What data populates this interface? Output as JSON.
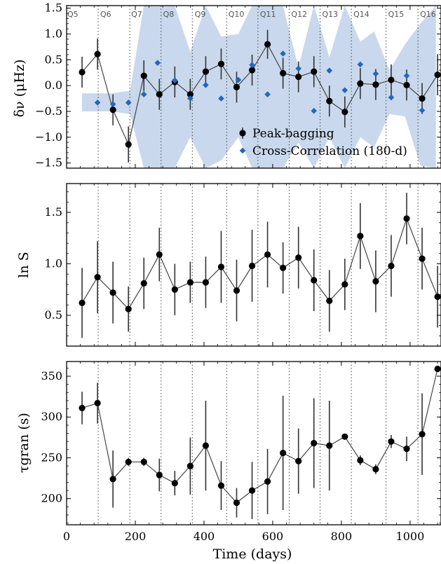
{
  "chart_data": [
    {
      "type": "scatter",
      "ylabel": "δν (μHz)",
      "xlim": [
        0,
        1090
      ],
      "ylim": [
        -1.6,
        1.55
      ],
      "yticks": [
        -1.5,
        -1.0,
        -0.5,
        0.0,
        0.5,
        1.0,
        1.5
      ],
      "ytick_labels": [
        "−1.5",
        "−1.0",
        "−0.5",
        "0.0",
        "0.5",
        "1.0",
        "1.5"
      ],
      "quarters": {
        "labels": [
          "Q5",
          "Q6",
          "Q7",
          "Q8",
          "Q9",
          "Q10",
          "Q11",
          "Q12",
          "Q13",
          "Q14",
          "Q15",
          "Q16"
        ],
        "boundaries": [
          92,
          184,
          275,
          366,
          466,
          557,
          648,
          738,
          829,
          930,
          1023
        ],
        "label_x": [
          0,
          96,
          186,
          279,
          371,
          469,
          561,
          652,
          742,
          833,
          934,
          1027
        ]
      },
      "legend": {
        "position": "lower-right",
        "entries": [
          "Peak-bagging",
          "Cross-Correlation (180-d)"
        ]
      },
      "band": {
        "x": [
          45,
          130,
          185,
          225,
          270,
          315,
          360,
          405,
          450,
          500,
          540,
          585,
          630,
          675,
          720,
          765,
          810,
          855,
          895,
          940,
          985,
          1030,
          1075
        ],
        "upper": [
          -0.15,
          -0.15,
          -0.1,
          1.55,
          1.55,
          1.55,
          0.65,
          1.55,
          0.95,
          1.0,
          1.55,
          1.55,
          1.55,
          0.35,
          1.55,
          0.55,
          1.55,
          0.85,
          1.05,
          0.3,
          0.8,
          1.2,
          1.55
        ],
        "lower": [
          -0.5,
          -0.5,
          -0.55,
          -1.6,
          -1.6,
          -1.6,
          -1.0,
          -1.6,
          -1.45,
          -1.0,
          -1.6,
          -1.6,
          -1.6,
          -1.1,
          -1.6,
          -1.0,
          -1.6,
          -1.0,
          -1.2,
          -0.55,
          -0.6,
          -1.55,
          -1.6
        ]
      },
      "series": [
        {
          "name": "Peak-bagging",
          "marker": "circle",
          "color": "#000000",
          "connected": true,
          "x": [
            45,
            90,
            135,
            180,
            225,
            270,
            315,
            360,
            405,
            450,
            495,
            540,
            585,
            630,
            675,
            720,
            765,
            810,
            855,
            900,
            945,
            990,
            1035,
            1080
          ],
          "y": [
            0.26,
            0.61,
            -0.47,
            -1.14,
            0.19,
            -0.17,
            0.07,
            -0.17,
            0.27,
            0.42,
            -0.03,
            0.3,
            0.8,
            0.24,
            0.17,
            0.27,
            -0.3,
            -0.51,
            0.04,
            0.02,
            0.11,
            0.01,
            -0.25,
            0.21
          ],
          "err": [
            0.3,
            0.3,
            0.3,
            0.35,
            0.3,
            0.3,
            0.3,
            0.3,
            0.3,
            0.3,
            0.3,
            0.3,
            0.28,
            0.3,
            0.3,
            0.3,
            0.3,
            0.3,
            0.3,
            0.3,
            0.3,
            0.3,
            0.3,
            0.4
          ]
        },
        {
          "name": "Cross-Correlation (180-d)",
          "marker": "diamond",
          "color": "#1f68c1",
          "connected": false,
          "x": [
            90,
            135,
            180,
            225,
            265,
            315,
            360,
            405,
            450,
            500,
            540,
            585,
            630,
            675,
            720,
            765,
            810,
            855,
            900,
            945,
            990,
            1035
          ],
          "y": [
            -0.33,
            -0.36,
            -0.33,
            -0.17,
            0.44,
            0.1,
            -0.25,
            0.01,
            -0.25,
            0.11,
            0.4,
            -0.17,
            0.62,
            0.33,
            -0.49,
            0.29,
            -0.09,
            0.41,
            0.23,
            -0.23,
            0.19,
            -0.48
          ]
        }
      ]
    },
    {
      "type": "scatter",
      "ylabel": "ln S",
      "xlim": [
        0,
        1090
      ],
      "ylim": [
        0.2,
        1.78
      ],
      "yticks": [
        0.5,
        1.0,
        1.5
      ],
      "ytick_labels": [
        "0.5",
        "1.0",
        "1.5"
      ],
      "series": [
        {
          "name": "",
          "marker": "circle",
          "color": "#000000",
          "connected": true,
          "x": [
            45,
            90,
            135,
            180,
            225,
            270,
            315,
            360,
            405,
            450,
            495,
            540,
            585,
            630,
            675,
            720,
            765,
            810,
            855,
            900,
            945,
            990,
            1035,
            1080
          ],
          "y": [
            0.62,
            0.87,
            0.72,
            0.56,
            0.81,
            1.09,
            0.75,
            0.82,
            0.82,
            0.97,
            0.74,
            0.98,
            1.09,
            0.96,
            1.06,
            0.84,
            0.64,
            0.8,
            1.27,
            0.83,
            0.98,
            1.44,
            1.05,
            0.68
          ],
          "err": [
            0.34,
            0.35,
            0.3,
            0.22,
            0.25,
            0.26,
            0.25,
            0.2,
            0.25,
            0.35,
            0.3,
            0.35,
            0.32,
            0.25,
            0.3,
            0.3,
            0.3,
            0.25,
            0.32,
            0.3,
            0.3,
            0.25,
            0.3,
            0.3
          ]
        }
      ]
    },
    {
      "type": "scatter",
      "ylabel": "τgran (s)",
      "xlabel": "Time (days)",
      "xlim": [
        0,
        1090
      ],
      "ylim": [
        168,
        368
      ],
      "yticks": [
        200,
        250,
        300,
        350
      ],
      "ytick_labels": [
        "200",
        "250",
        "300",
        "350"
      ],
      "xticks": [
        0,
        200,
        400,
        600,
        800,
        1000
      ],
      "xtick_labels": [
        "0",
        "200",
        "400",
        "600",
        "800",
        "1000"
      ],
      "series": [
        {
          "name": "",
          "marker": "circle",
          "color": "#000000",
          "connected": true,
          "x": [
            45,
            90,
            135,
            180,
            225,
            270,
            315,
            360,
            405,
            450,
            495,
            540,
            585,
            630,
            675,
            720,
            765,
            810,
            855,
            900,
            945,
            990,
            1035,
            1080
          ],
          "y": [
            311,
            317,
            224,
            245,
            245,
            229,
            219,
            240,
            265,
            216,
            195,
            210,
            221,
            256,
            246,
            268,
            265,
            276,
            247,
            236,
            270,
            261,
            279,
            359
          ],
          "err": [
            20,
            25,
            35,
            5,
            5,
            20,
            15,
            35,
            55,
            30,
            18,
            35,
            40,
            70,
            40,
            55,
            55,
            3,
            6,
            6,
            8,
            15,
            50,
            0
          ]
        }
      ]
    }
  ]
}
